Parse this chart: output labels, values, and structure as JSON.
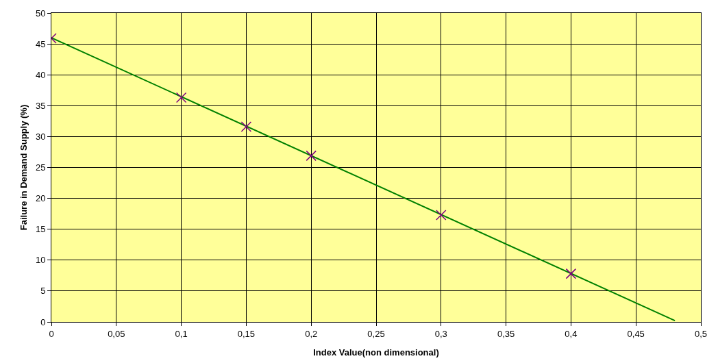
{
  "chart_data": {
    "type": "scatter",
    "xlabel": "Index Value(non dimensional)",
    "ylabel": "Failure in Demand Supply (%)",
    "x": [
      0,
      0.1,
      0.15,
      0.2,
      0.3,
      0.4
    ],
    "series": [
      {
        "color": "#800080",
        "marker": "cross",
        "values": [
          45.9,
          36.3,
          31.6,
          26.9,
          17.3,
          7.8
        ]
      },
      {
        "type": "line",
        "color": "#008000",
        "marker": "none",
        "line_style": "solid",
        "x": [
          0,
          0.48
        ],
        "values": [
          46,
          0.2
        ]
      }
    ],
    "xlim": [
      0,
      0.5
    ],
    "xticks": [
      0,
      {
        "value": 0.05,
        "label": "0,05"
      },
      {
        "value": 0.1,
        "label": "0,1"
      },
      {
        "value": 0.15,
        "label": "0,15"
      },
      {
        "value": 0.2,
        "label": "0,2"
      },
      {
        "value": 0.25,
        "label": "0,25"
      },
      {
        "value": 0.3,
        "label": "0,3"
      },
      {
        "value": 0.35,
        "label": "0,35"
      },
      {
        "value": 0.4,
        "label": "0,4"
      },
      {
        "value": 0.45,
        "label": "0,45"
      },
      {
        "value": 0.5,
        "label": "0,5"
      }
    ],
    "ylim": [
      0,
      50
    ],
    "yticks": [
      0,
      5,
      10,
      15,
      20,
      25,
      30,
      35,
      40,
      45,
      50
    ],
    "grid": true
  }
}
